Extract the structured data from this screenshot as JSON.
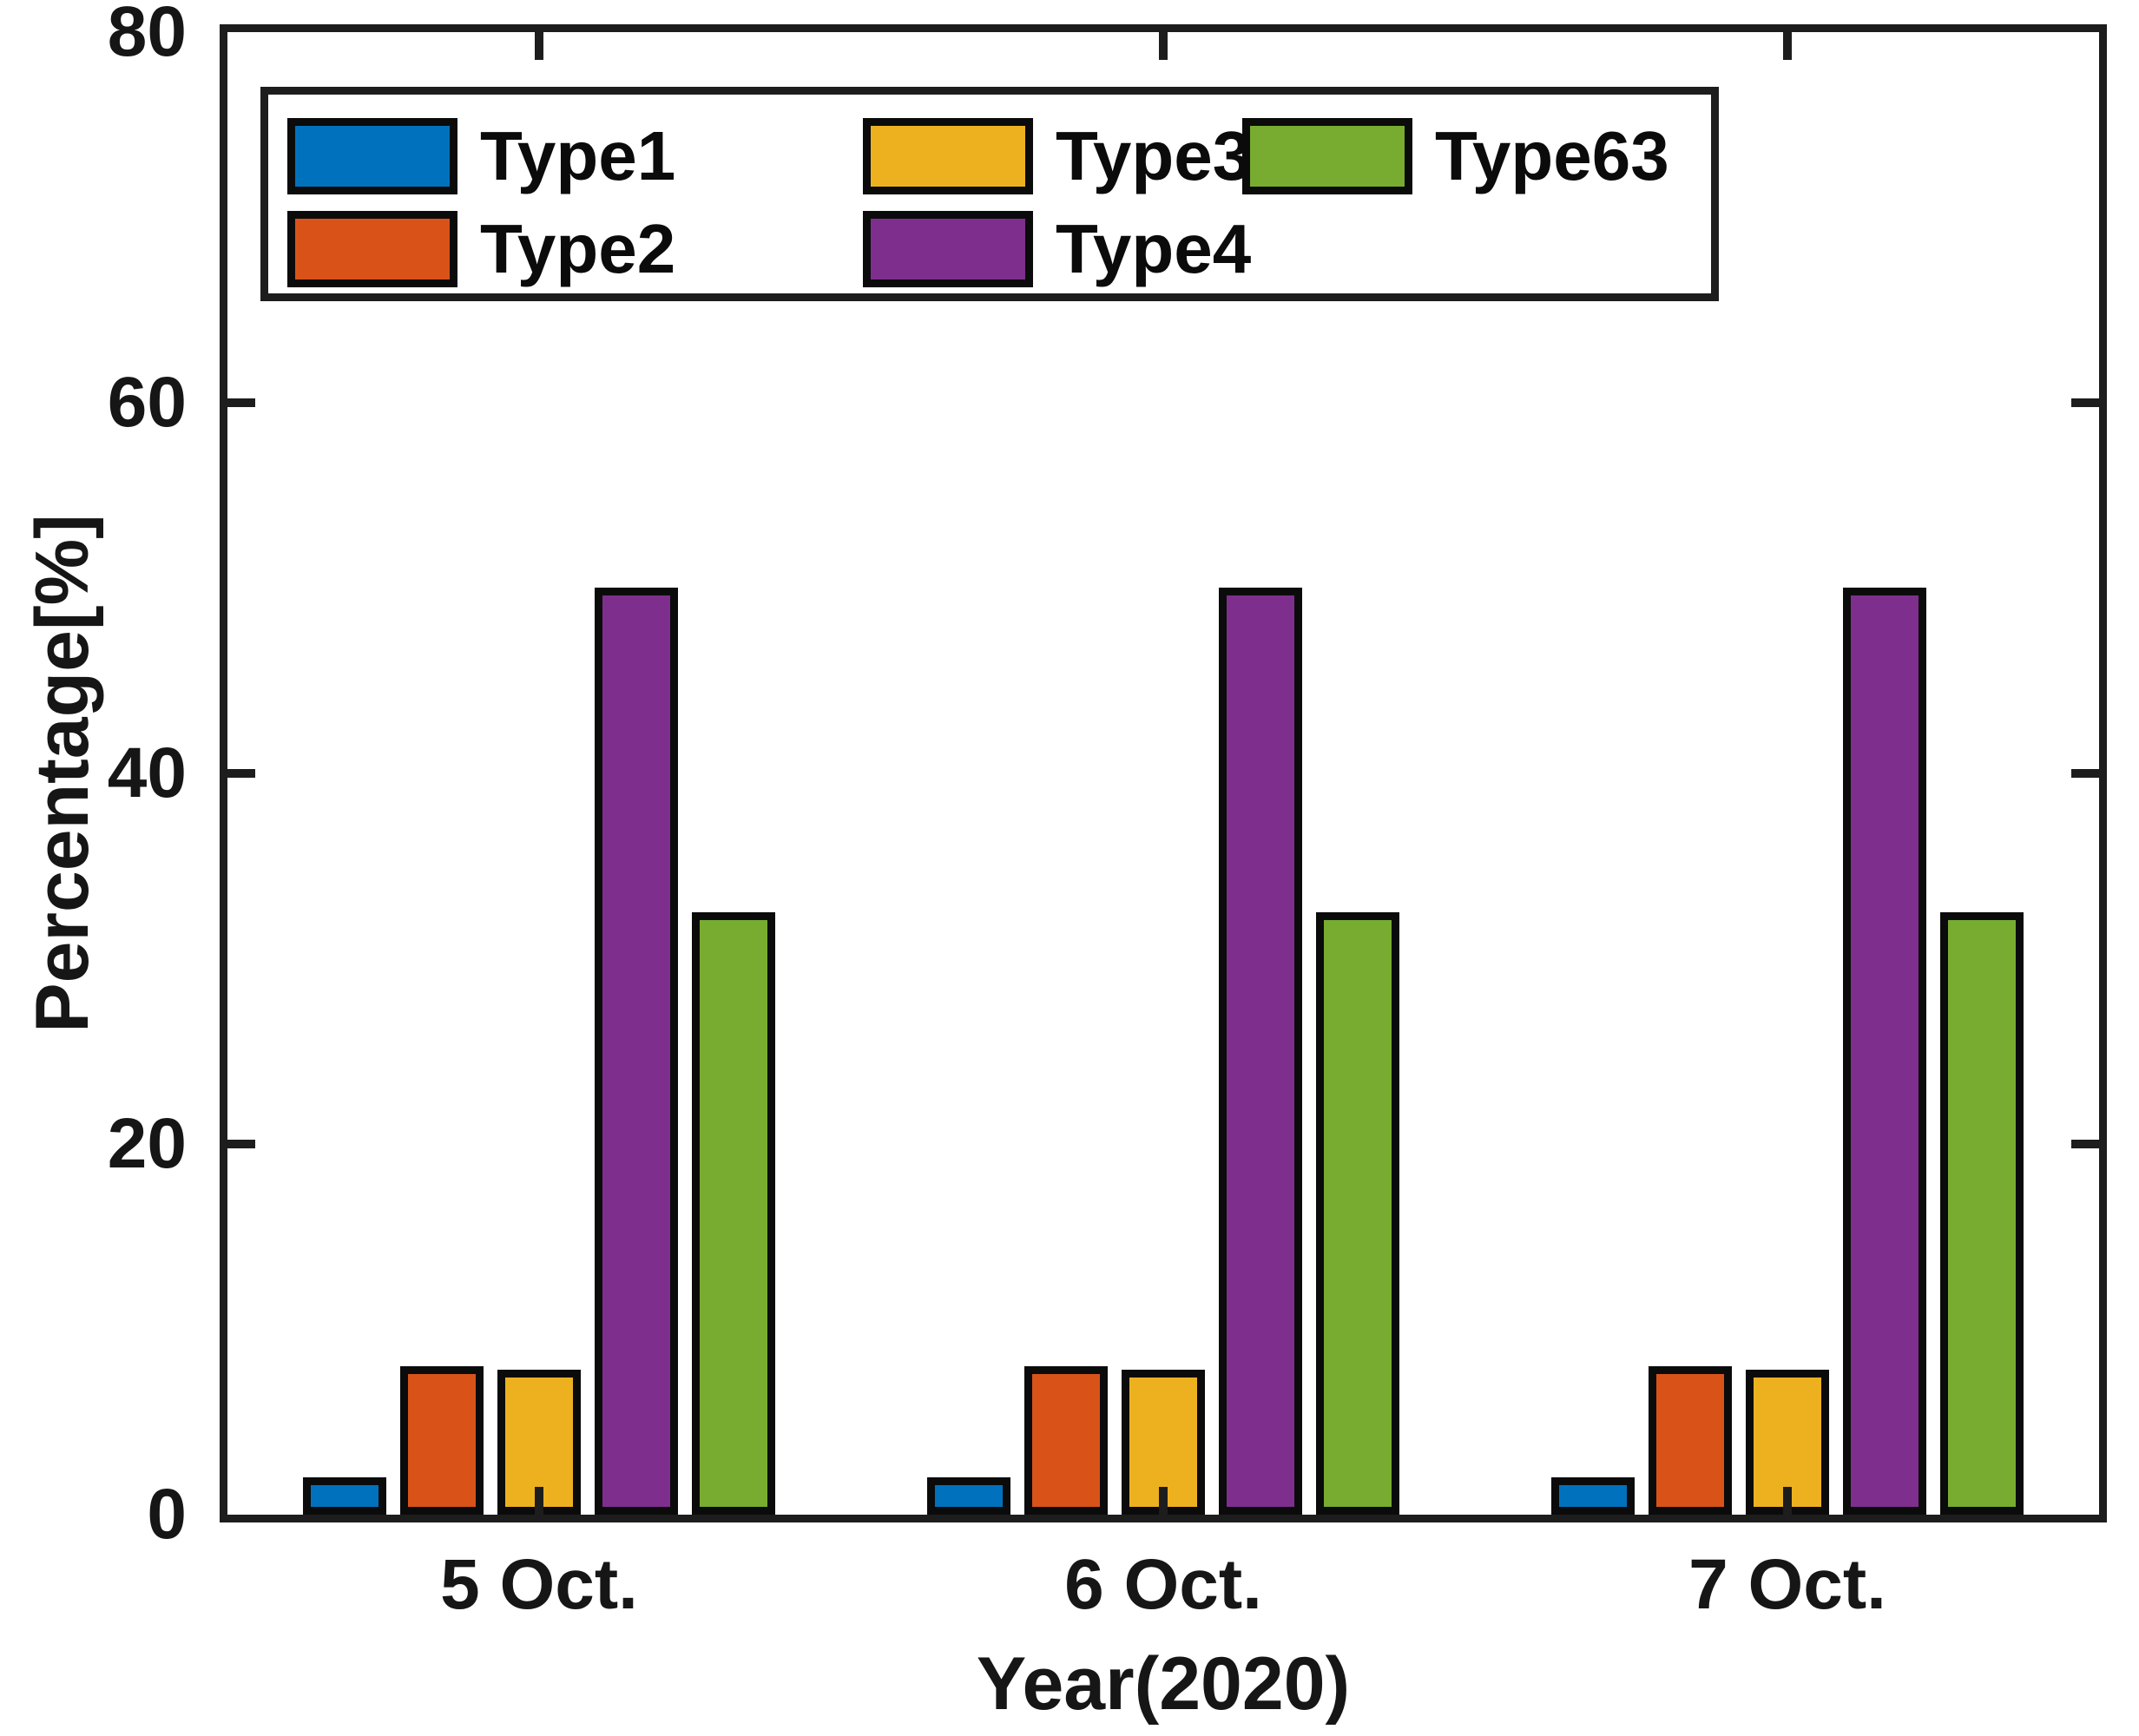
{
  "axes": {
    "x": {
      "label": "Year(2020)"
    },
    "y": {
      "label": "Percentage[%]",
      "ticks": [
        "0",
        "20",
        "40",
        "60",
        "80"
      ],
      "max": 80
    }
  },
  "legend": {
    "items": [
      {
        "label": "Type1",
        "color": "#0072BD"
      },
      {
        "label": "Type2",
        "color": "#D95319"
      },
      {
        "label": "Type3",
        "color": "#EDB120"
      },
      {
        "label": "Type4",
        "color": "#7E2F8E"
      },
      {
        "label": "Type63",
        "color": "#77AC30"
      }
    ]
  },
  "chart_data": {
    "type": "bar",
    "categories": [
      "5 Oct.",
      "6 Oct.",
      "7 Oct."
    ],
    "series": [
      {
        "name": "Type1",
        "color": "#0072BD",
        "values": [
          2,
          2,
          2
        ]
      },
      {
        "name": "Type2",
        "color": "#D95319",
        "values": [
          8,
          8,
          8
        ]
      },
      {
        "name": "Type3",
        "color": "#EDB120",
        "values": [
          7.8,
          7.8,
          7.8
        ]
      },
      {
        "name": "Type4",
        "color": "#7E2F8E",
        "values": [
          50,
          50,
          50
        ]
      },
      {
        "name": "Type63",
        "color": "#77AC30",
        "values": [
          32.5,
          32.5,
          32.5
        ]
      }
    ],
    "title": "",
    "xlabel": "Year(2020)",
    "ylabel": "Percentage[%]",
    "ylim": [
      0,
      80
    ],
    "grid": false,
    "legend_position": "top-left-inside"
  },
  "colors": {
    "axis": "#1d1d1d",
    "text": "#161616",
    "background": "#ffffff"
  }
}
